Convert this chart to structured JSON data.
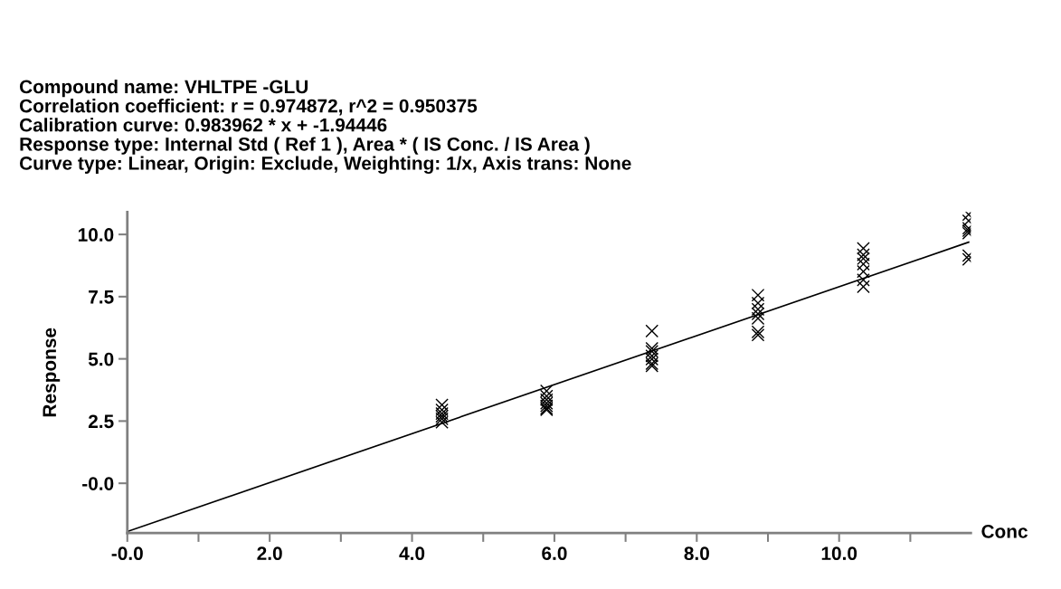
{
  "chart_data": {
    "type": "scatter",
    "title": "Compound name: VHLTPE -GLU",
    "annotations": [
      "Correlation coefficient: r = 0.974872, r^2 = 0.950375",
      "Calibration curve: 0.983962 * x + -1.94446",
      "Response type: Internal Std ( Ref 1 ), Area * ( IS Conc. / IS Area )",
      "Curve type: Linear, Origin: Exclude, Weighting: 1/x, Axis trans: None"
    ],
    "xlabel": "Conc",
    "ylabel": "Response",
    "grid": false,
    "legend": false,
    "xlim": [
      0,
      11.85
    ],
    "ylim": [
      -2.0,
      10.9
    ],
    "xticks": [
      {
        "value": 0,
        "label": "-0.0"
      },
      {
        "value": 1,
        "label": null
      },
      {
        "value": 2,
        "label": "2.0"
      },
      {
        "value": 3,
        "label": null
      },
      {
        "value": 4,
        "label": "4.0"
      },
      {
        "value": 5,
        "label": null
      },
      {
        "value": 6,
        "label": "6.0"
      },
      {
        "value": 7,
        "label": null
      },
      {
        "value": 8,
        "label": "8.0"
      },
      {
        "value": 9,
        "label": null
      },
      {
        "value": 10,
        "label": "10.0"
      },
      {
        "value": 11,
        "label": null
      }
    ],
    "yticks": [
      {
        "value": 0,
        "label": "-0.0"
      },
      {
        "value": 2.5,
        "label": "2.5"
      },
      {
        "value": 5,
        "label": "5.0"
      },
      {
        "value": 7.5,
        "label": "7.5"
      },
      {
        "value": 10,
        "label": "10.0"
      }
    ],
    "series": [
      {
        "marker": "cross",
        "color": "#000000",
        "x": [
          4.42,
          4.42,
          4.42,
          4.42,
          4.42,
          4.42,
          5.89,
          5.89,
          5.89,
          5.89,
          5.89,
          5.89,
          5.89,
          7.37,
          7.37,
          7.37,
          7.37,
          7.37,
          7.37,
          7.37,
          8.86,
          8.86,
          8.86,
          8.86,
          8.86,
          8.86,
          8.86,
          10.34,
          10.34,
          10.34,
          10.34,
          10.34,
          10.34,
          10.34,
          11.82,
          11.82,
          11.82,
          11.82,
          11.82,
          11.82,
          11.82
        ],
        "values": [
          3.15,
          2.95,
          2.8,
          2.69,
          2.59,
          2.45,
          3.71,
          3.5,
          3.36,
          3.22,
          3.11,
          3.01,
          2.95,
          6.12,
          5.42,
          5.3,
          5.12,
          4.99,
          4.81,
          4.72,
          7.56,
          7.24,
          6.99,
          6.81,
          6.63,
          6.08,
          5.96,
          9.44,
          9.18,
          9.03,
          8.81,
          8.51,
          8.17,
          7.9,
          10.8,
          10.55,
          10.25,
          10.15,
          10.05,
          9.15,
          9.0
        ]
      },
      {
        "type": "line",
        "marker": "none",
        "color": "#000000",
        "line_style": "solid",
        "x": [
          0,
          11.82
        ],
        "values": [
          -1.94,
          9.69
        ]
      }
    ]
  }
}
